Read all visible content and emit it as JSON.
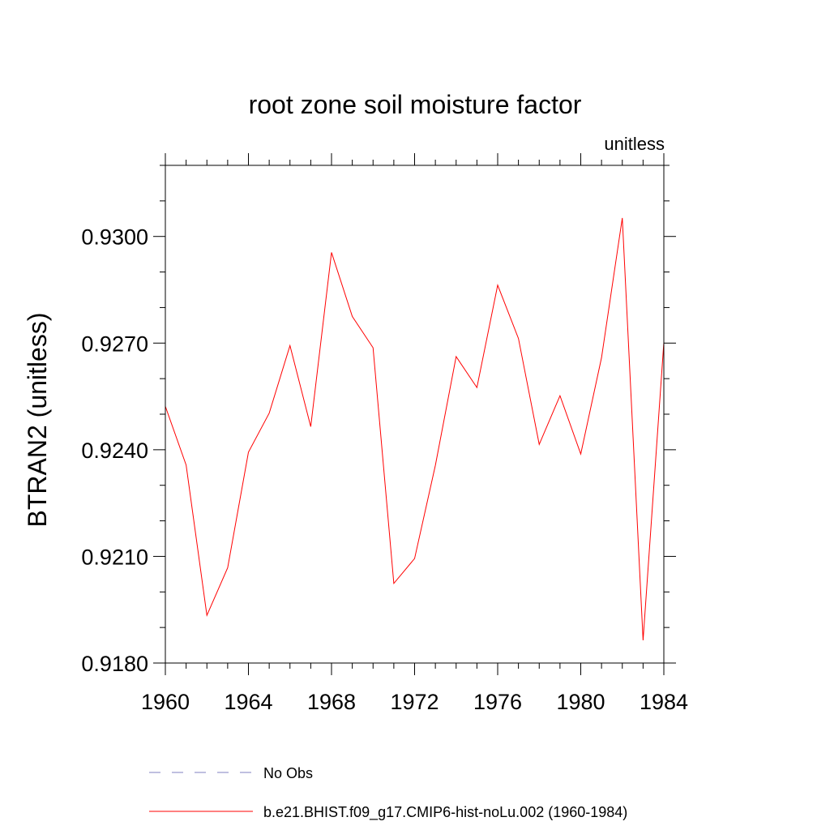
{
  "chart_data": {
    "type": "line",
    "title": "root zone soil moisture factor",
    "units": "unitless",
    "ylabel": "BTRAN2  (unitless)",
    "xlabel": "",
    "xlim": [
      1960,
      1984
    ],
    "ylim": [
      0.918,
      0.932
    ],
    "x_ticks": [
      1960,
      1964,
      1968,
      1972,
      1976,
      1980,
      1984
    ],
    "y_ticks": [
      0.918,
      0.921,
      0.924,
      0.927,
      0.93
    ],
    "y_tick_labels": [
      "0.9180",
      "0.9210",
      "0.9240",
      "0.9270",
      "0.9300"
    ],
    "x_minor_step": 1,
    "y_minor_step": 0.001,
    "grid": false,
    "series": [
      {
        "name": "No Obs",
        "color": "#8080c0",
        "dash": "dashed",
        "values": []
      },
      {
        "name": "b.e21.BHIST.f09_g17.CMIP6-hist-noLu.002 (1960-1984)",
        "color": "#ff0000",
        "dash": "solid",
        "x": [
          1960,
          1961,
          1962,
          1963,
          1964,
          1965,
          1966,
          1967,
          1968,
          1969,
          1970,
          1971,
          1972,
          1973,
          1974,
          1975,
          1976,
          1977,
          1978,
          1979,
          1980,
          1981,
          1982,
          1983,
          1984
        ],
        "values": [
          0.92522,
          0.92357,
          0.91934,
          0.92068,
          0.92393,
          0.92503,
          0.92693,
          0.92465,
          0.92955,
          0.92775,
          0.92687,
          0.92024,
          0.92094,
          0.92356,
          0.92662,
          0.92575,
          0.92863,
          0.92713,
          0.92415,
          0.92552,
          0.92388,
          0.92659,
          0.93052,
          0.91864,
          0.92702
        ]
      }
    ]
  }
}
